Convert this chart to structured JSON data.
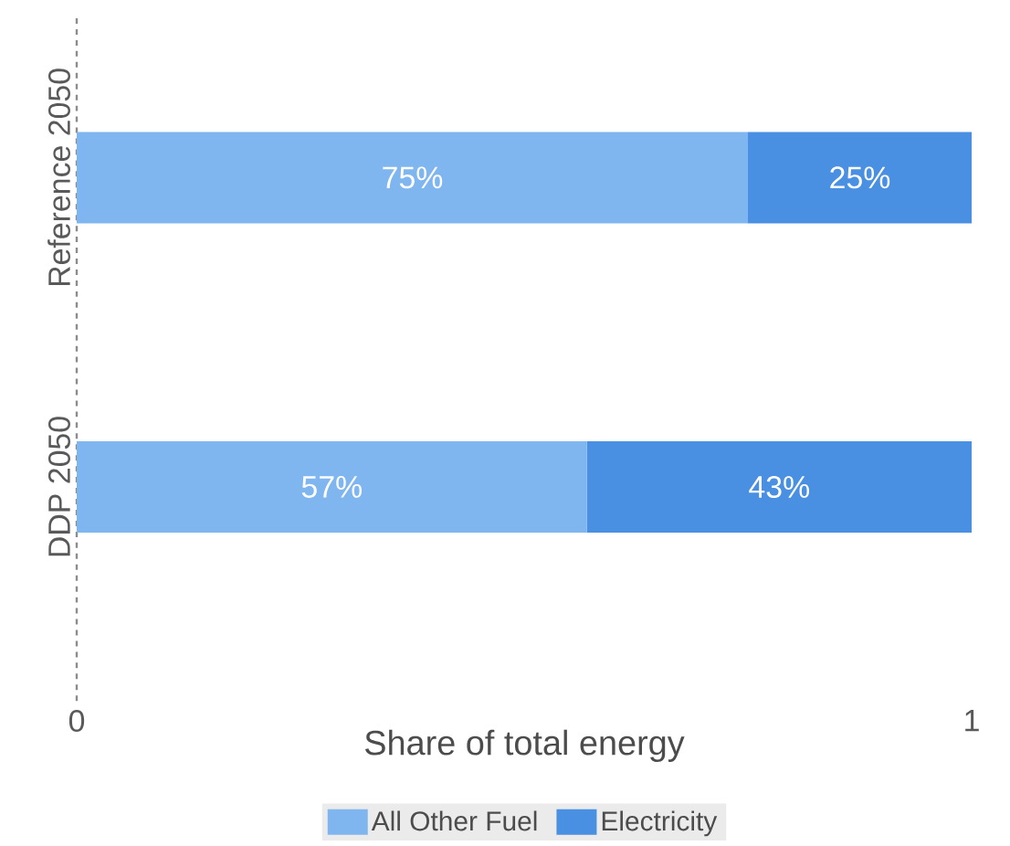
{
  "chart_data": {
    "type": "bar",
    "orientation": "horizontal",
    "stacked": true,
    "categories": [
      "Reference 2050",
      "DDP 2050"
    ],
    "series": [
      {
        "name": "All Other Fuel",
        "color": "#7fb6f0",
        "values": [
          0.75,
          0.57
        ],
        "value_labels": [
          "75%",
          "57%"
        ]
      },
      {
        "name": "Electricity",
        "color": "#4a90e2",
        "values": [
          0.25,
          0.43
        ],
        "value_labels": [
          "25%",
          "43%"
        ]
      }
    ],
    "xlim": [
      0,
      1
    ],
    "xticks": [
      0,
      1
    ],
    "xlabel": "Share of total energy",
    "legend": "bottom"
  }
}
